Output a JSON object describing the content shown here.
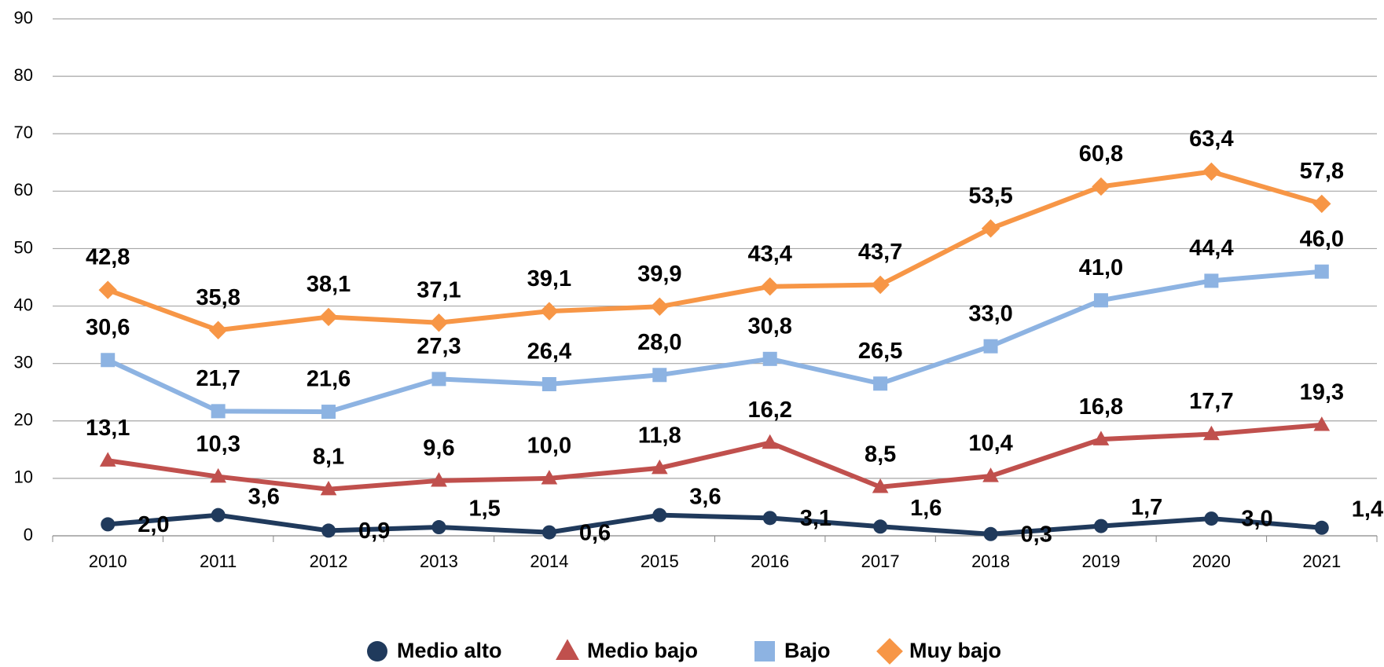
{
  "chart_data": {
    "type": "line",
    "categories": [
      "2010",
      "2011",
      "2012",
      "2013",
      "2014",
      "2015",
      "2016",
      "2017",
      "2018",
      "2019",
      "2020",
      "2021"
    ],
    "series": [
      {
        "name": "Medio alto",
        "color": "#203a5c",
        "marker": "circle",
        "values": [
          2.0,
          3.6,
          0.9,
          1.5,
          0.6,
          3.6,
          3.1,
          1.6,
          0.3,
          1.7,
          3.0,
          1.4
        ],
        "value_labels": [
          "2,0",
          "3,6",
          "0,9",
          "1,5",
          "0,6",
          "3,6",
          "3,1",
          "1,6",
          "0,3",
          "1,7",
          "3,0",
          "1,4"
        ]
      },
      {
        "name": "Medio bajo",
        "color": "#c0504d",
        "marker": "triangle",
        "values": [
          13.1,
          10.3,
          8.1,
          9.6,
          10.0,
          11.8,
          16.2,
          8.5,
          10.4,
          16.8,
          17.7,
          19.3
        ],
        "value_labels": [
          "13,1",
          "10,3",
          "8,1",
          "9,6",
          "10,0",
          "11,8",
          "16,2",
          "8,5",
          "10,4",
          "16,8",
          "17,7",
          "19,3"
        ]
      },
      {
        "name": "Bajo",
        "color": "#8db3e2",
        "marker": "square",
        "values": [
          30.6,
          21.7,
          21.6,
          27.3,
          26.4,
          28.0,
          30.8,
          26.5,
          33.0,
          41.0,
          44.4,
          46.0
        ],
        "value_labels": [
          "30,6",
          "21,7",
          "21,6",
          "27,3",
          "26,4",
          "28,0",
          "30,8",
          "26,5",
          "33,0",
          "41,0",
          "44,4",
          "46,0"
        ]
      },
      {
        "name": "Muy bajo",
        "color": "#f79646",
        "marker": "diamond",
        "values": [
          42.8,
          35.8,
          38.1,
          37.1,
          39.1,
          39.9,
          43.4,
          43.7,
          53.5,
          60.8,
          63.4,
          57.8
        ],
        "value_labels": [
          "42,8",
          "35,8",
          "38,1",
          "37,1",
          "39,1",
          "39,9",
          "43,4",
          "43,7",
          "53,5",
          "60,8",
          "63,4",
          "57,8"
        ]
      }
    ],
    "ylim": [
      0,
      90
    ],
    "yticks": [
      0,
      10,
      20,
      30,
      40,
      50,
      60,
      70,
      80,
      90
    ],
    "grid": true,
    "legend": "bottom"
  }
}
